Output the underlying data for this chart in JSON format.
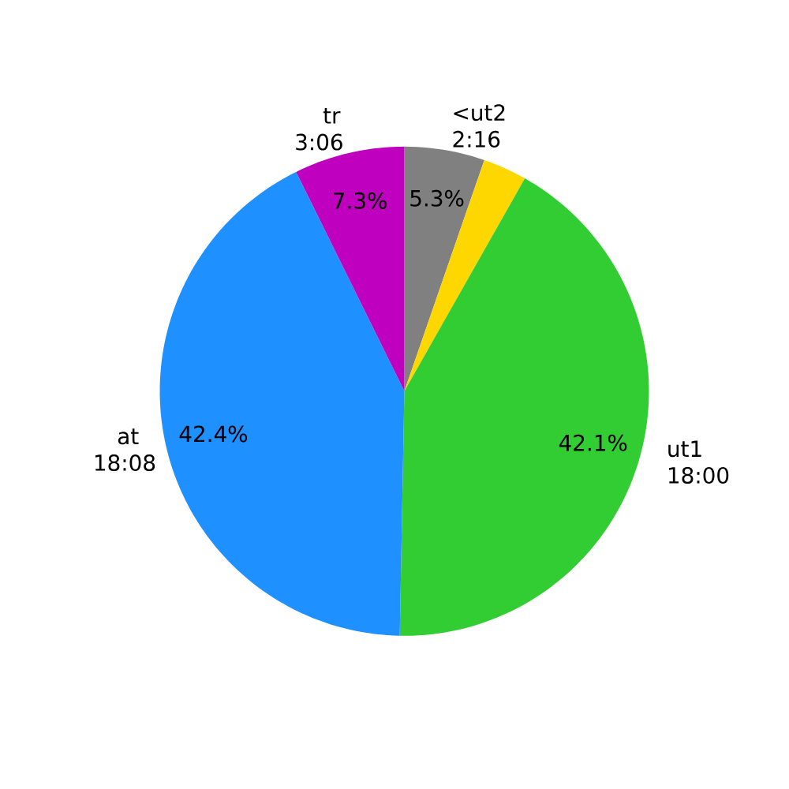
{
  "chart_data": {
    "type": "pie",
    "categories": [
      "<ut2 2:16",
      null,
      "ut1 18:00",
      "at 18:08",
      "tr 3:06"
    ],
    "values": [
      5.3,
      2.9,
      42.1,
      42.4,
      7.3
    ],
    "colors": [
      "#808080",
      "#ffd700",
      "#32cd32",
      "#1e90ff",
      "#bf00bf"
    ],
    "value_labels": [
      "5.3%",
      null,
      "42.1%",
      "42.4%",
      "7.3%"
    ]
  }
}
